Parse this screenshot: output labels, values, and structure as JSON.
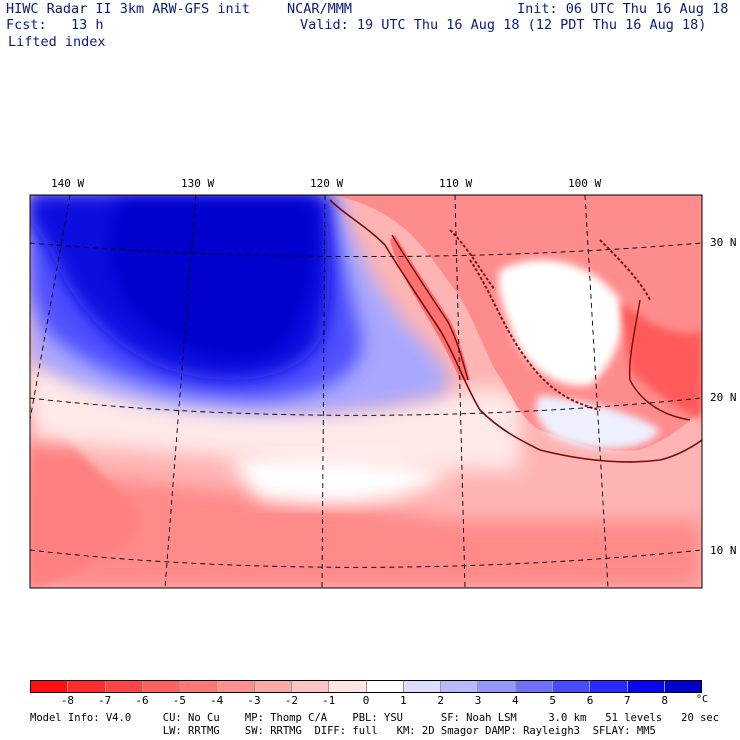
{
  "header": {
    "model_title": "HIWC Radar II 3km ARW-GFS init",
    "org": "NCAR/MMM",
    "init": "Init: 06 UTC Thu 16 Aug 18",
    "fcst": "Fcst:   13 h",
    "valid": "Valid: 19 UTC Thu 16 Aug 18 (12 PDT Thu 16 Aug 18)",
    "field": "Lifted index"
  },
  "map": {
    "lon_labels": [
      "140 W",
      "130 W",
      "120 W",
      "110 W",
      "100 W"
    ],
    "lat_labels": [
      "30 N",
      "20 N",
      "10 N"
    ],
    "colors": {
      "land_outline": "#7a0a0a",
      "grid": "#000000",
      "deep_blue": "#0011dd"
    }
  },
  "colorbar": {
    "labels": [
      "-8",
      "-7",
      "-6",
      "-5",
      "-4",
      "-3",
      "-2",
      "-1",
      "0",
      "1",
      "2",
      "3",
      "4",
      "5",
      "6",
      "7",
      "8"
    ],
    "unit": "°C",
    "colors": [
      "#ff1010",
      "#ff2c2c",
      "#ff4646",
      "#ff6060",
      "#ff7878",
      "#ff9090",
      "#ffa8a8",
      "#ffc4c4",
      "#ffe4e4",
      "#ffffff",
      "#dcdcff",
      "#b8b8ff",
      "#9696ff",
      "#7070ff",
      "#4a4aff",
      "#2a2aff",
      "#0808ee",
      "#0000cc"
    ]
  },
  "footer": {
    "line1": "Model Info: V4.0     CU: No Cu    MP: Thomp C/A    PBL: YSU      SF: Noah LSM     3.0 km   51 levels   20 sec",
    "line2": "                     LW: RRTMG    SW: RRTMG  DIFF: full   KM: 2D Smagor DAMP: Rayleigh3  SFLAY: MM5"
  }
}
